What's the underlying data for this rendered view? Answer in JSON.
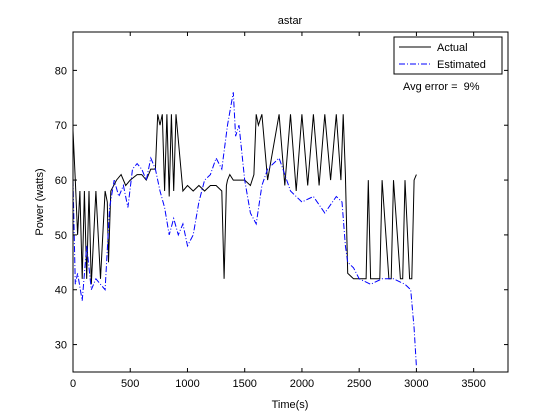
{
  "chart_data": {
    "type": "line",
    "title": "astar",
    "xlabel": "Time(s)",
    "ylabel": "Power (watts)",
    "xlim": [
      0,
      3800
    ],
    "ylim": [
      25,
      87
    ],
    "xticks": [
      0,
      500,
      1000,
      1500,
      2000,
      2500,
      3000,
      3500
    ],
    "yticks": [
      30,
      40,
      50,
      60,
      70,
      80
    ],
    "grid": false,
    "legend_position": "top-right",
    "annotation": "Avg error =  9%",
    "series": [
      {
        "name": "Actual",
        "color": "#000000",
        "style": "solid",
        "x": [
          0,
          20,
          40,
          60,
          80,
          100,
          120,
          140,
          160,
          200,
          240,
          280,
          300,
          310,
          330,
          380,
          420,
          460,
          500,
          560,
          600,
          640,
          680,
          720,
          740,
          760,
          780,
          800,
          820,
          840,
          860,
          880,
          900,
          960,
          1000,
          1050,
          1100,
          1150,
          1200,
          1250,
          1300,
          1320,
          1340,
          1350,
          1370,
          1400,
          1500,
          1550,
          1580,
          1600,
          1620,
          1650,
          1700,
          1800,
          1850,
          1900,
          1950,
          2000,
          2050,
          2100,
          2150,
          2200,
          2250,
          2300,
          2340,
          2360,
          2380,
          2400,
          2450,
          2500,
          2560,
          2580,
          2600,
          2680,
          2700,
          2760,
          2780,
          2800,
          2860,
          2880,
          2900,
          2940,
          2960,
          2980,
          3000
        ],
        "y": [
          69,
          60,
          50,
          58,
          42,
          58,
          42,
          58,
          41,
          58,
          42,
          58,
          56,
          45,
          58,
          60,
          61,
          59,
          60,
          61,
          61,
          60,
          62,
          62,
          72,
          70,
          72,
          58,
          72,
          57,
          72,
          58,
          72,
          58,
          59,
          58,
          59,
          58,
          59,
          59,
          58,
          42,
          59,
          60,
          61,
          60,
          60,
          59,
          61,
          72,
          70,
          72,
          60,
          72,
          59,
          72,
          58,
          72,
          59,
          72,
          59,
          72,
          60,
          72,
          60,
          72,
          61,
          43,
          42,
          42,
          42,
          60,
          42,
          42,
          60,
          42,
          42,
          60,
          42,
          42,
          60,
          42,
          42,
          60,
          61
        ]
      },
      {
        "name": "Estimated",
        "color": "#0000ff",
        "style": "dash-dot",
        "x": [
          0,
          20,
          40,
          80,
          120,
          160,
          200,
          240,
          280,
          320,
          360,
          400,
          440,
          480,
          520,
          560,
          600,
          640,
          680,
          720,
          760,
          800,
          840,
          880,
          920,
          960,
          1000,
          1050,
          1100,
          1150,
          1200,
          1250,
          1300,
          1350,
          1400,
          1420,
          1450,
          1500,
          1550,
          1600,
          1650,
          1700,
          1800,
          1900,
          2000,
          2100,
          2200,
          2300,
          2350,
          2380,
          2400,
          2450,
          2500,
          2600,
          2700,
          2800,
          2900,
          2950,
          2980,
          3000
        ],
        "y": [
          60,
          41,
          43,
          38,
          48,
          40,
          42,
          41,
          40,
          55,
          60,
          57,
          59,
          55,
          62,
          63,
          62,
          60,
          64,
          62,
          58,
          55,
          50,
          53,
          50,
          52,
          48,
          50,
          56,
          60,
          61,
          64,
          62,
          70,
          76,
          68,
          70,
          60,
          54,
          52,
          59,
          62,
          64,
          58,
          56,
          57,
          54,
          57,
          56,
          48,
          45,
          44,
          42,
          41,
          42,
          42,
          41,
          40,
          33,
          26
        ]
      }
    ]
  }
}
